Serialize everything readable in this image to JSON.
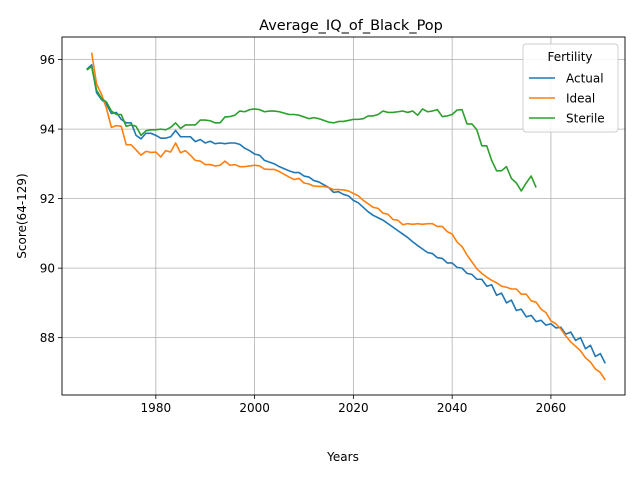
{
  "chart_data": {
    "type": "line",
    "title": "Average_IQ_of_Black_Pop",
    "xlabel": "Years",
    "ylabel": "Score(64-129)",
    "xlim": [
      1961,
      2075
    ],
    "ylim": [
      86.35,
      96.65
    ],
    "xticks": [
      1980,
      2000,
      2020,
      2040,
      2060
    ],
    "yticks": [
      88,
      90,
      92,
      94,
      96
    ],
    "grid": true,
    "legend": {
      "title": "Fertility",
      "placement": "upper right"
    },
    "series": [
      {
        "name": "Actual",
        "color": "#1f77b4",
        "points": [
          [
            1966,
            95.72
          ],
          [
            1967,
            95.85
          ],
          [
            1968,
            95.05
          ],
          [
            1969,
            94.85
          ],
          [
            1970,
            94.72
          ],
          [
            1971,
            94.45
          ],
          [
            1972,
            94.48
          ],
          [
            1973,
            94.28
          ],
          [
            1974,
            94.18
          ],
          [
            1975,
            94.18
          ],
          [
            1976,
            93.82
          ],
          [
            1977,
            93.72
          ],
          [
            1978,
            93.88
          ],
          [
            1979,
            93.88
          ],
          [
            1980,
            93.82
          ],
          [
            1981,
            93.74
          ],
          [
            1982,
            93.74
          ],
          [
            1983,
            93.78
          ],
          [
            1984,
            93.96
          ],
          [
            1985,
            93.78
          ],
          [
            1986,
            93.78
          ],
          [
            1987,
            93.78
          ],
          [
            1988,
            93.64
          ],
          [
            1989,
            93.7
          ],
          [
            1990,
            93.6
          ],
          [
            1991,
            93.65
          ],
          [
            1992,
            93.58
          ],
          [
            1993,
            93.6
          ],
          [
            1994,
            93.58
          ],
          [
            1995,
            93.6
          ],
          [
            1996,
            93.6
          ],
          [
            1997,
            93.56
          ],
          [
            1998,
            93.45
          ],
          [
            1999,
            93.38
          ],
          [
            2000,
            93.28
          ],
          [
            2001,
            93.25
          ],
          [
            2002,
            93.1
          ],
          [
            2003,
            93.05
          ],
          [
            2004,
            93.0
          ],
          [
            2005,
            92.92
          ],
          [
            2006,
            92.86
          ],
          [
            2007,
            92.8
          ],
          [
            2008,
            92.75
          ],
          [
            2009,
            92.75
          ],
          [
            2010,
            92.65
          ],
          [
            2011,
            92.62
          ],
          [
            2012,
            92.52
          ],
          [
            2013,
            92.48
          ],
          [
            2014,
            92.4
          ],
          [
            2015,
            92.32
          ],
          [
            2016,
            92.18
          ],
          [
            2017,
            92.2
          ],
          [
            2018,
            92.12
          ],
          [
            2019,
            92.08
          ],
          [
            2020,
            91.95
          ],
          [
            2021,
            91.88
          ],
          [
            2022,
            91.75
          ],
          [
            2023,
            91.62
          ],
          [
            2024,
            91.52
          ],
          [
            2025,
            91.45
          ],
          [
            2026,
            91.38
          ],
          [
            2027,
            91.28
          ],
          [
            2028,
            91.18
          ],
          [
            2029,
            91.08
          ],
          [
            2030,
            90.98
          ],
          [
            2031,
            90.88
          ],
          [
            2032,
            90.76
          ],
          [
            2033,
            90.65
          ],
          [
            2034,
            90.55
          ],
          [
            2035,
            90.45
          ],
          [
            2036,
            90.42
          ],
          [
            2037,
            90.3
          ],
          [
            2038,
            90.28
          ],
          [
            2039,
            90.15
          ],
          [
            2040,
            90.15
          ],
          [
            2041,
            90.02
          ],
          [
            2042,
            90.0
          ],
          [
            2043,
            89.85
          ],
          [
            2044,
            89.82
          ],
          [
            2045,
            89.68
          ],
          [
            2046,
            89.68
          ],
          [
            2047,
            89.48
          ],
          [
            2048,
            89.52
          ],
          [
            2049,
            89.22
          ],
          [
            2050,
            89.28
          ],
          [
            2051,
            89.0
          ],
          [
            2052,
            89.08
          ],
          [
            2053,
            88.78
          ],
          [
            2054,
            88.82
          ],
          [
            2055,
            88.6
          ],
          [
            2056,
            88.64
          ],
          [
            2057,
            88.46
          ],
          [
            2058,
            88.5
          ],
          [
            2059,
            88.36
          ],
          [
            2060,
            88.4
          ],
          [
            2061,
            88.28
          ],
          [
            2062,
            88.3
          ],
          [
            2063,
            88.1
          ],
          [
            2064,
            88.16
          ],
          [
            2065,
            87.92
          ],
          [
            2066,
            88.0
          ],
          [
            2067,
            87.68
          ],
          [
            2068,
            87.78
          ],
          [
            2069,
            87.46
          ],
          [
            2070,
            87.54
          ],
          [
            2071,
            87.26
          ]
        ]
      },
      {
        "name": "Ideal",
        "color": "#ff7f0e",
        "points": [
          [
            1967,
            96.2
          ],
          [
            1968,
            95.3
          ],
          [
            1969,
            95.0
          ],
          [
            1970,
            94.6
          ],
          [
            1971,
            94.05
          ],
          [
            1972,
            94.1
          ],
          [
            1973,
            94.08
          ],
          [
            1974,
            93.55
          ],
          [
            1975,
            93.55
          ],
          [
            1976,
            93.4
          ],
          [
            1977,
            93.25
          ],
          [
            1978,
            93.36
          ],
          [
            1979,
            93.33
          ],
          [
            1980,
            93.34
          ],
          [
            1981,
            93.2
          ],
          [
            1982,
            93.38
          ],
          [
            1983,
            93.34
          ],
          [
            1984,
            93.6
          ],
          [
            1985,
            93.32
          ],
          [
            1986,
            93.38
          ],
          [
            1987,
            93.25
          ],
          [
            1988,
            93.1
          ],
          [
            1989,
            93.08
          ],
          [
            1990,
            92.98
          ],
          [
            1991,
            92.98
          ],
          [
            1992,
            92.94
          ],
          [
            1993,
            92.96
          ],
          [
            1994,
            93.08
          ],
          [
            1995,
            92.96
          ],
          [
            1996,
            92.98
          ],
          [
            1997,
            92.92
          ],
          [
            1998,
            92.92
          ],
          [
            1999,
            92.94
          ],
          [
            2000,
            92.96
          ],
          [
            2001,
            92.94
          ],
          [
            2002,
            92.85
          ],
          [
            2003,
            92.84
          ],
          [
            2004,
            92.84
          ],
          [
            2005,
            92.78
          ],
          [
            2006,
            92.7
          ],
          [
            2007,
            92.62
          ],
          [
            2008,
            92.55
          ],
          [
            2009,
            92.58
          ],
          [
            2010,
            92.45
          ],
          [
            2011,
            92.42
          ],
          [
            2012,
            92.36
          ],
          [
            2013,
            92.35
          ],
          [
            2014,
            92.35
          ],
          [
            2015,
            92.32
          ],
          [
            2016,
            92.26
          ],
          [
            2017,
            92.26
          ],
          [
            2018,
            92.25
          ],
          [
            2019,
            92.22
          ],
          [
            2020,
            92.15
          ],
          [
            2021,
            92.08
          ],
          [
            2022,
            91.95
          ],
          [
            2023,
            91.85
          ],
          [
            2024,
            91.75
          ],
          [
            2025,
            91.72
          ],
          [
            2026,
            91.58
          ],
          [
            2027,
            91.55
          ],
          [
            2028,
            91.4
          ],
          [
            2029,
            91.38
          ],
          [
            2030,
            91.25
          ],
          [
            2031,
            91.28
          ],
          [
            2032,
            91.26
          ],
          [
            2033,
            91.28
          ],
          [
            2034,
            91.26
          ],
          [
            2035,
            91.28
          ],
          [
            2036,
            91.28
          ],
          [
            2037,
            91.2
          ],
          [
            2038,
            91.2
          ],
          [
            2039,
            91.05
          ],
          [
            2040,
            90.98
          ],
          [
            2041,
            90.75
          ],
          [
            2042,
            90.62
          ],
          [
            2043,
            90.38
          ],
          [
            2044,
            90.18
          ],
          [
            2045,
            89.98
          ],
          [
            2046,
            89.85
          ],
          [
            2047,
            89.74
          ],
          [
            2048,
            89.65
          ],
          [
            2049,
            89.58
          ],
          [
            2050,
            89.48
          ],
          [
            2051,
            89.45
          ],
          [
            2052,
            89.4
          ],
          [
            2053,
            89.4
          ],
          [
            2054,
            89.25
          ],
          [
            2055,
            89.25
          ],
          [
            2056,
            89.06
          ],
          [
            2057,
            89.02
          ],
          [
            2058,
            88.82
          ],
          [
            2059,
            88.72
          ],
          [
            2060,
            88.48
          ],
          [
            2061,
            88.4
          ],
          [
            2062,
            88.25
          ],
          [
            2063,
            88.05
          ],
          [
            2064,
            87.88
          ],
          [
            2065,
            87.75
          ],
          [
            2066,
            87.62
          ],
          [
            2067,
            87.42
          ],
          [
            2068,
            87.3
          ],
          [
            2069,
            87.1
          ],
          [
            2070,
            87.0
          ],
          [
            2071,
            86.78
          ]
        ]
      },
      {
        "name": "Sterile",
        "color": "#2ca02c",
        "points": [
          [
            1966,
            95.7
          ],
          [
            1967,
            95.8
          ],
          [
            1968,
            95.12
          ],
          [
            1969,
            94.88
          ],
          [
            1970,
            94.78
          ],
          [
            1971,
            94.52
          ],
          [
            1972,
            94.42
          ],
          [
            1973,
            94.42
          ],
          [
            1974,
            94.08
          ],
          [
            1975,
            94.12
          ],
          [
            1976,
            94.08
          ],
          [
            1977,
            93.82
          ],
          [
            1978,
            93.95
          ],
          [
            1979,
            93.98
          ],
          [
            1980,
            93.98
          ],
          [
            1981,
            94.0
          ],
          [
            1982,
            93.98
          ],
          [
            1983,
            94.05
          ],
          [
            1984,
            94.18
          ],
          [
            1985,
            94.02
          ],
          [
            1986,
            94.12
          ],
          [
            1987,
            94.12
          ],
          [
            1988,
            94.12
          ],
          [
            1989,
            94.26
          ],
          [
            1990,
            94.26
          ],
          [
            1991,
            94.24
          ],
          [
            1992,
            94.18
          ],
          [
            1993,
            94.18
          ],
          [
            1994,
            94.35
          ],
          [
            1995,
            94.36
          ],
          [
            1996,
            94.4
          ],
          [
            1997,
            94.52
          ],
          [
            1998,
            94.5
          ],
          [
            1999,
            94.56
          ],
          [
            2000,
            94.58
          ],
          [
            2001,
            94.56
          ],
          [
            2002,
            94.5
          ],
          [
            2003,
            94.52
          ],
          [
            2004,
            94.52
          ],
          [
            2005,
            94.5
          ],
          [
            2006,
            94.46
          ],
          [
            2007,
            94.42
          ],
          [
            2008,
            94.42
          ],
          [
            2009,
            94.4
          ],
          [
            2010,
            94.35
          ],
          [
            2011,
            94.3
          ],
          [
            2012,
            94.33
          ],
          [
            2013,
            94.3
          ],
          [
            2014,
            94.25
          ],
          [
            2015,
            94.2
          ],
          [
            2016,
            94.18
          ],
          [
            2017,
            94.22
          ],
          [
            2018,
            94.22
          ],
          [
            2019,
            94.25
          ],
          [
            2020,
            94.28
          ],
          [
            2021,
            94.28
          ],
          [
            2022,
            94.3
          ],
          [
            2023,
            94.38
          ],
          [
            2024,
            94.38
          ],
          [
            2025,
            94.42
          ],
          [
            2026,
            94.52
          ],
          [
            2027,
            94.48
          ],
          [
            2028,
            94.48
          ],
          [
            2029,
            94.5
          ],
          [
            2030,
            94.52
          ],
          [
            2031,
            94.48
          ],
          [
            2032,
            94.52
          ],
          [
            2033,
            94.4
          ],
          [
            2034,
            94.58
          ],
          [
            2035,
            94.5
          ],
          [
            2036,
            94.52
          ],
          [
            2037,
            94.56
          ],
          [
            2038,
            94.36
          ],
          [
            2039,
            94.38
          ],
          [
            2040,
            94.42
          ],
          [
            2041,
            94.55
          ],
          [
            2042,
            94.56
          ],
          [
            2043,
            94.15
          ],
          [
            2044,
            94.15
          ],
          [
            2045,
            93.98
          ],
          [
            2046,
            93.52
          ],
          [
            2047,
            93.52
          ],
          [
            2048,
            93.1
          ],
          [
            2049,
            92.8
          ],
          [
            2050,
            92.8
          ],
          [
            2051,
            92.92
          ],
          [
            2052,
            92.58
          ],
          [
            2053,
            92.45
          ],
          [
            2054,
            92.22
          ],
          [
            2055,
            92.45
          ],
          [
            2056,
            92.65
          ],
          [
            2057,
            92.32
          ]
        ]
      }
    ]
  }
}
